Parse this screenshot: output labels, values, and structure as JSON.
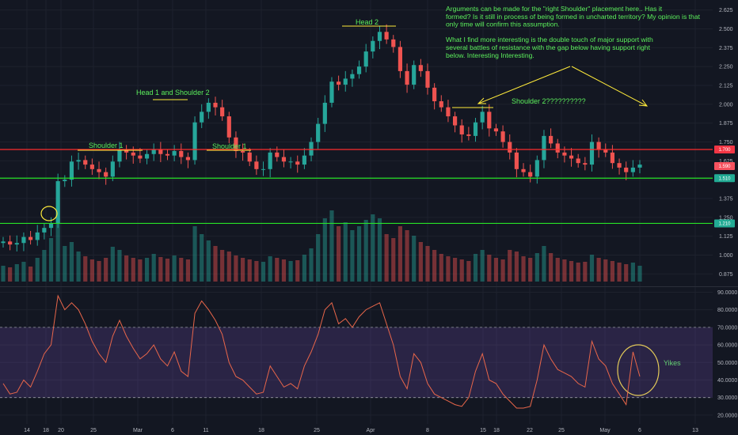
{
  "chart_data": [
    {
      "type": "candlestick",
      "name": "price",
      "y_ticks": [
        "2.625",
        "2.500",
        "2.375",
        "2.250",
        "2.125",
        "2.000",
        "1.875",
        "1.750",
        "1.625",
        "1.500",
        "1.375",
        "1.250",
        "1.125",
        "1.000",
        "0.875"
      ],
      "ylim": [
        0.84,
        2.66
      ],
      "price_badges": [
        {
          "value": 1.7,
          "text": "1.700",
          "color": "#f23645"
        },
        {
          "value": 1.59,
          "text": "1.590",
          "color": "#f7525f"
        },
        {
          "value": 1.51,
          "text": "1.510",
          "color": "#22ab94"
        },
        {
          "value": 1.21,
          "text": "1.210",
          "color": "#22ab94"
        }
      ],
      "horizontal_lines": [
        {
          "value": 1.7,
          "color": "#f23645"
        },
        {
          "value": 1.51,
          "color": "#22ab94"
        },
        {
          "value": 1.21,
          "color": "#22ab94"
        }
      ],
      "x_ticks": [
        "14",
        "18",
        "20",
        "25",
        "Mar",
        "6",
        "11",
        "18",
        "25",
        "Apr",
        "8",
        "15",
        "18",
        "22",
        "25",
        "May",
        "6",
        "13"
      ],
      "close_series_daily": [
        1.09,
        1.07,
        1.08,
        1.12,
        1.1,
        1.15,
        1.18,
        1.21,
        1.49,
        1.5,
        1.62,
        1.63,
        1.6,
        1.57,
        1.55,
        1.52,
        1.62,
        1.7,
        1.68,
        1.66,
        1.64,
        1.67,
        1.7,
        1.67,
        1.66,
        1.69,
        1.65,
        1.63,
        1.88,
        1.95,
        2.01,
        1.98,
        1.92,
        1.78,
        1.69,
        1.68,
        1.62,
        1.57,
        1.57,
        1.68,
        1.65,
        1.62,
        1.62,
        1.6,
        1.66,
        1.75,
        1.87,
        2.01,
        2.15,
        2.13,
        2.17,
        2.2,
        2.25,
        2.35,
        2.42,
        2.48,
        2.43,
        2.38,
        2.22,
        2.13,
        2.26,
        2.22,
        2.11,
        2.02,
        1.98,
        1.92,
        1.86,
        1.8,
        1.79,
        1.88,
        1.95,
        1.84,
        1.82,
        1.75,
        1.68,
        1.57,
        1.55,
        1.52,
        1.63,
        1.79,
        1.74,
        1.68,
        1.66,
        1.64,
        1.61,
        1.6,
        1.75,
        1.7,
        1.68,
        1.61,
        1.58,
        1.55,
        1.58,
        1.6
      ]
    },
    {
      "type": "bar",
      "name": "volume",
      "values": [
        20,
        18,
        22,
        25,
        19,
        30,
        40,
        55,
        80,
        45,
        50,
        38,
        32,
        28,
        26,
        30,
        44,
        40,
        33,
        30,
        28,
        30,
        35,
        31,
        29,
        33,
        30,
        28,
        70,
        60,
        52,
        45,
        40,
        38,
        33,
        30,
        28,
        26,
        25,
        32,
        30,
        28,
        26,
        27,
        34,
        42,
        60,
        80,
        90,
        70,
        75,
        65,
        70,
        78,
        85,
        80,
        60,
        55,
        70,
        65,
        58,
        50,
        45,
        40,
        35,
        32,
        30,
        28,
        26,
        35,
        40,
        34,
        30,
        28,
        40,
        38,
        32,
        30,
        36,
        45,
        36,
        30,
        28,
        26,
        24,
        25,
        34,
        30,
        28,
        26,
        24,
        22,
        24,
        20
      ]
    },
    {
      "type": "line",
      "name": "rsi",
      "y_ticks": [
        "90.0000",
        "80.0000",
        "70.0000",
        "60.0000",
        "50.0000",
        "40.0000",
        "30.0000",
        "20.0000"
      ],
      "ylim": [
        15,
        92
      ],
      "band": [
        30,
        70
      ],
      "values": [
        38,
        32,
        33,
        40,
        36,
        45,
        55,
        60,
        88,
        80,
        84,
        80,
        72,
        62,
        55,
        50,
        65,
        74,
        65,
        58,
        52,
        55,
        60,
        52,
        48,
        56,
        45,
        42,
        78,
        85,
        80,
        74,
        66,
        50,
        42,
        40,
        36,
        32,
        33,
        48,
        42,
        36,
        38,
        35,
        48,
        56,
        66,
        80,
        84,
        72,
        75,
        70,
        76,
        80,
        82,
        84,
        72,
        60,
        42,
        35,
        55,
        50,
        38,
        32,
        30,
        28,
        26,
        25,
        30,
        45,
        55,
        40,
        38,
        32,
        28,
        24,
        24,
        25,
        40,
        60,
        52,
        46,
        44,
        42,
        38,
        36,
        62,
        52,
        48,
        38,
        32,
        26,
        56,
        42
      ]
    }
  ],
  "annotations": {
    "head2": "Head 2",
    "head1_shoulder2": "Head 1 and Shoulder 2",
    "shoulder1_a": "Shoulder 1",
    "shoulder1_b": "Shoulder 1",
    "shoulder2": "Shoulder 2??????????",
    "yikes": "Yikes",
    "note_lines": [
      "Arguments can be made for the \"right Shoulder\" placement here.. Has it",
      "formed? Is it still in process of being formed in uncharted territory? My opinion is that",
      "only time will confirm this assumption.",
      "",
      "What I find more interesting is the double touch of major support with",
      "several battles of resistance with the gap below having support right",
      "below. Interesting Interesting."
    ]
  },
  "colors": {
    "up": "#26a69a",
    "down": "#ef5350",
    "annotation": "#5cf05c",
    "highlight": "#ffeb3b",
    "rsi_line": "#e8664a",
    "rsi_band": "#7e57c2"
  }
}
